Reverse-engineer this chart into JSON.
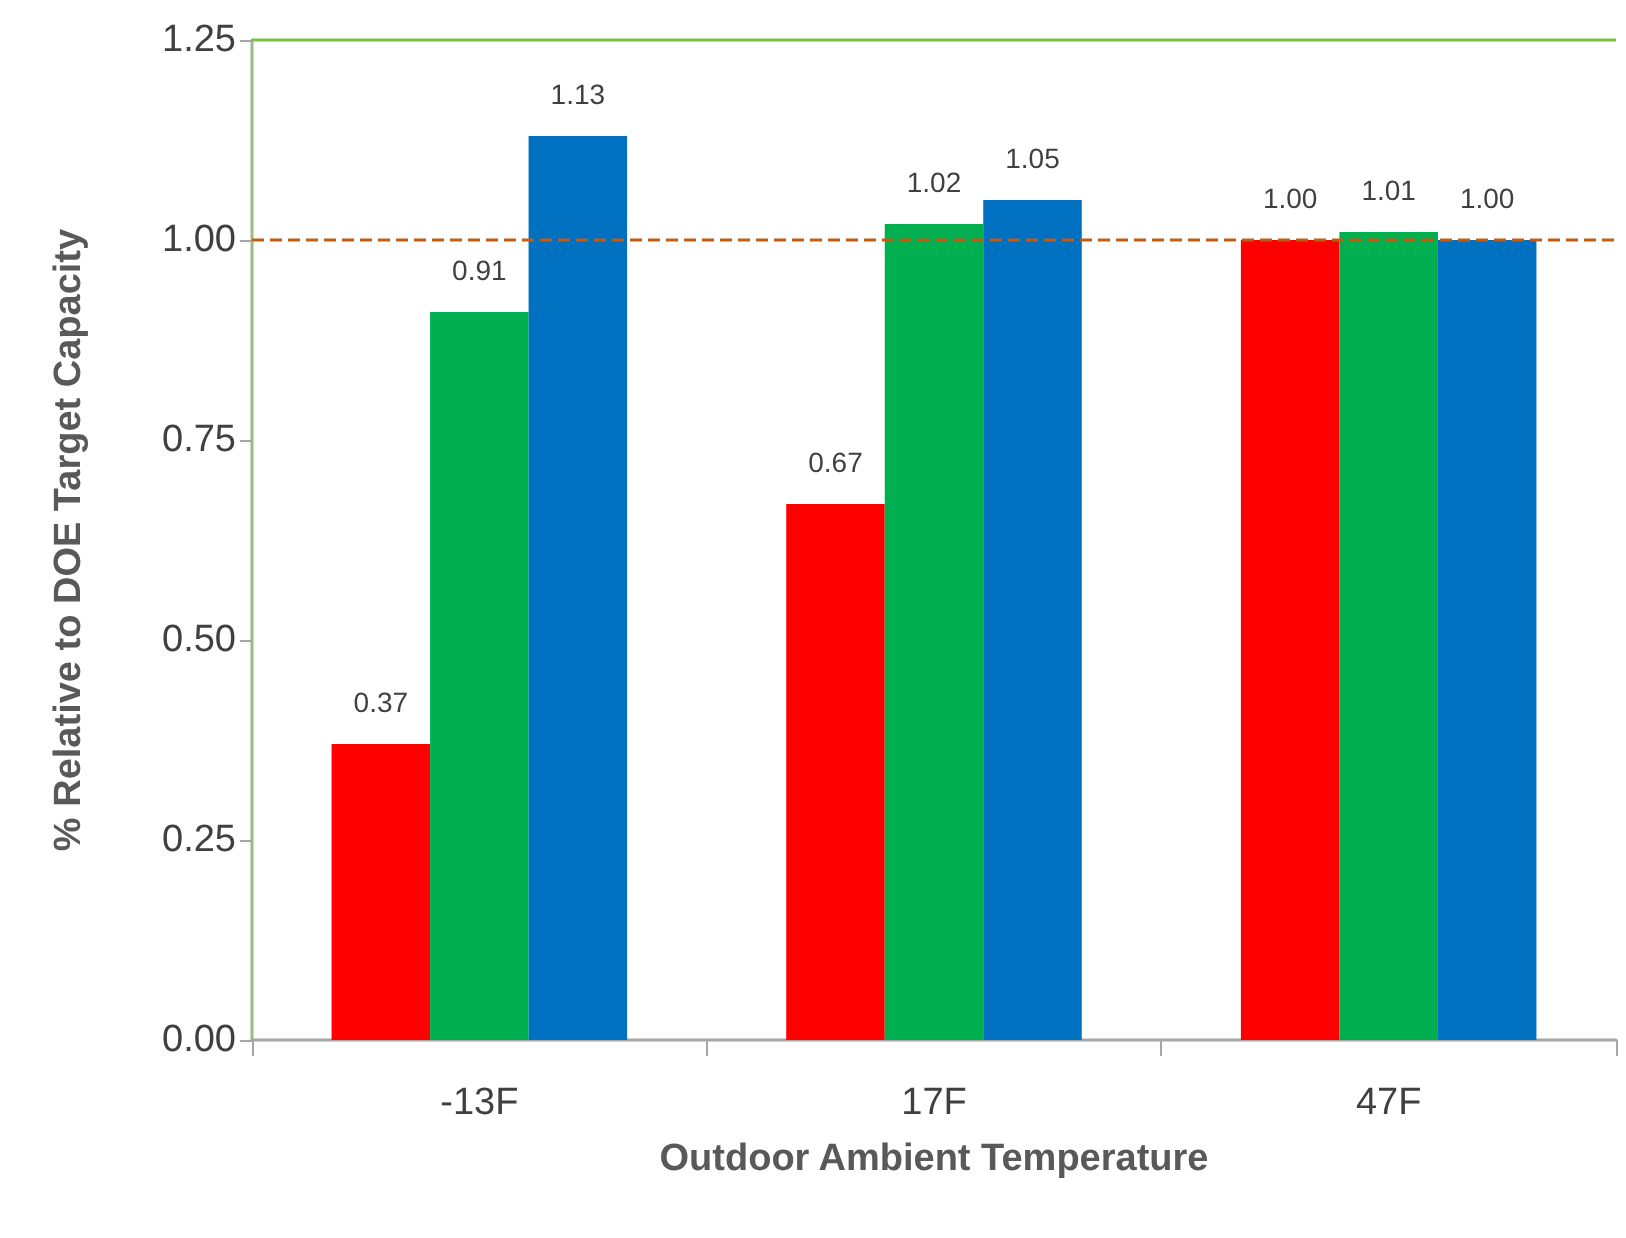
{
  "chart_data": {
    "type": "bar",
    "xlabel": "Outdoor Ambient Temperature",
    "ylabel": "% Relative to DOE Target Capacity",
    "categories": [
      "-13F",
      "17F",
      "47F"
    ],
    "series": [
      {
        "color": "#ff0000",
        "values": [
          0.37,
          0.67,
          1.0
        ],
        "value_labels": [
          "0.37",
          "0.67",
          "1.00"
        ]
      },
      {
        "color": "#00b050",
        "values": [
          0.91,
          1.02,
          1.01
        ],
        "value_labels": [
          "0.91",
          "1.02",
          "1.01"
        ]
      },
      {
        "color": "#0070c0",
        "values": [
          1.13,
          1.05,
          1.0
        ],
        "value_labels": [
          "1.13",
          "1.05",
          "1.00"
        ]
      }
    ],
    "ylim": [
      0,
      1.25
    ],
    "yticks": [
      "0.00",
      "0.25",
      "0.50",
      "0.75",
      "1.00",
      "1.25"
    ],
    "ref_lines": [
      {
        "axis": "y",
        "value": 1.0,
        "color": "#c55a11",
        "line_style": "dashed"
      },
      {
        "axis": "y",
        "value": 1.25,
        "color": "#7ac143",
        "line_style": "solid"
      }
    ]
  }
}
